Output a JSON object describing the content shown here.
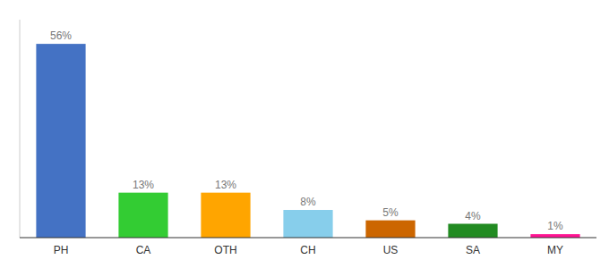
{
  "chart_data": {
    "type": "bar",
    "categories": [
      "PH",
      "CA",
      "OTH",
      "CH",
      "US",
      "SA",
      "MY"
    ],
    "values": [
      56,
      13,
      13,
      8,
      5,
      4,
      1
    ],
    "value_labels": [
      "56%",
      "13%",
      "13%",
      "8%",
      "5%",
      "4%",
      "1%"
    ],
    "colors": [
      "#4472C4",
      "#33CC33",
      "#FFA500",
      "#87CEEB",
      "#CC6600",
      "#228B22",
      "#FF1493"
    ],
    "ylim": [
      0,
      63
    ],
    "data_labels": true,
    "tick_labels": "x",
    "grid": false
  }
}
